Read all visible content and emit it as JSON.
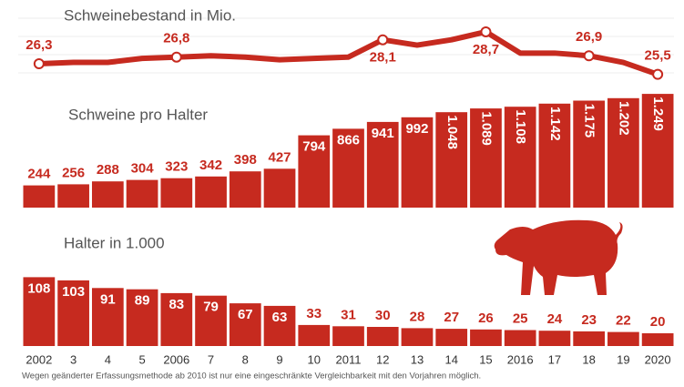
{
  "chart_data": [
    {
      "type": "line",
      "title": "Schweinebestand in Mio.",
      "color": "#c62a1f",
      "values": [
        26.3,
        26.4,
        26.4,
        26.7,
        26.8,
        26.9,
        26.8,
        26.6,
        26.7,
        26.8,
        28.1,
        27.7,
        28.1,
        28.7,
        27.1,
        27.1,
        26.9,
        26.4,
        25.5
      ],
      "value_labels": [
        "26,3",
        null,
        null,
        null,
        "26,8",
        null,
        null,
        null,
        null,
        null,
        "28,1",
        null,
        null,
        "28,7",
        null,
        null,
        "26,9",
        null,
        "25,5"
      ]
    },
    {
      "type": "bar",
      "title": "Schweine pro Halter",
      "color": "#c62a1f",
      "values": [
        244,
        256,
        288,
        304,
        323,
        342,
        398,
        427,
        794,
        866,
        941,
        992,
        1048,
        1089,
        1108,
        1142,
        1175,
        1202,
        1249
      ],
      "value_labels": [
        "244",
        "256",
        "288",
        "304",
        "323",
        "342",
        "398",
        "427",
        "794",
        "866",
        "941",
        "992",
        "1.048",
        "1.089",
        "1.108",
        "1.142",
        "1.175",
        "1.202",
        "1.249"
      ]
    },
    {
      "type": "bar",
      "title": "Halter in 1.000",
      "color": "#c62a1f",
      "categories": [
        "2002",
        "3",
        "4",
        "5",
        "2006",
        "7",
        "8",
        "9",
        "10",
        "2011",
        "12",
        "13",
        "14",
        "15",
        "2016",
        "17",
        "18",
        "19",
        "2020"
      ],
      "values": [
        108,
        103,
        91,
        89,
        83,
        79,
        67,
        63,
        33,
        31,
        30,
        28,
        27,
        26,
        25,
        24,
        23,
        22,
        20
      ]
    }
  ],
  "footnote": "Wegen geänderter Erfassungsmethode ab 2010 ist nur eine eingeschränkte Vergleichbarkeit mit den Vorjahren möglich."
}
